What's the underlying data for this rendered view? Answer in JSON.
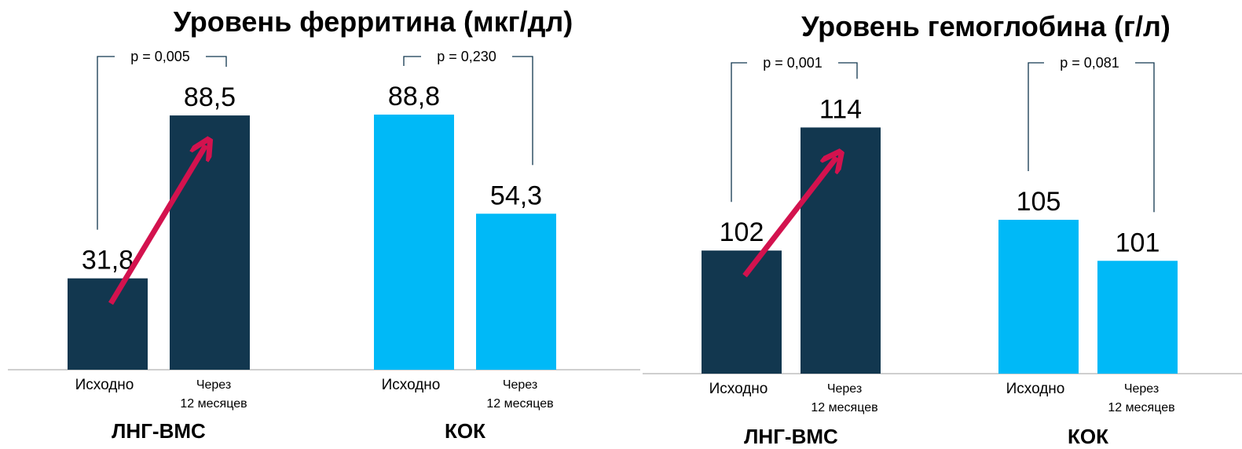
{
  "chart_data": [
    {
      "type": "bar",
      "title": "Уровень ферритина (мкг/дл)",
      "categories": [
        "Исходно",
        "Через 12 месяцев"
      ],
      "series": [
        {
          "name": "ЛНГ-ВМС",
          "color": "#12374f",
          "values": [
            31.8,
            88.5
          ],
          "value_labels": [
            "31,8",
            "88,5"
          ],
          "p_label": "p = 0,005"
        },
        {
          "name": "КОК",
          "color": "#00b9f7",
          "values": [
            88.8,
            54.3
          ],
          "value_labels": [
            "88,8",
            "54,3"
          ],
          "p_label": "p = 0,230"
        }
      ],
      "ylim": [
        0,
        100
      ]
    },
    {
      "type": "bar",
      "title": "Уровень гемоглобина (г/л)",
      "categories": [
        "Исходно",
        "Через 12 месяцев"
      ],
      "series": [
        {
          "name": "ЛНГ-ВМС",
          "color": "#12374f",
          "values": [
            102,
            114
          ],
          "p_label": "p = 0,001"
        },
        {
          "name": "КОК",
          "color": "#00b9f7",
          "values": [
            105,
            101
          ],
          "p_label": "p = 0,081"
        }
      ],
      "ylim": [
        90,
        120
      ]
    }
  ]
}
